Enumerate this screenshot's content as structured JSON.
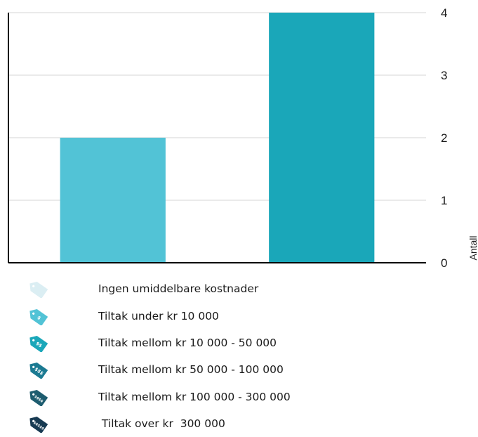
{
  "chart_data": {
    "type": "bar",
    "categories": [
      "Tiltak under kr 10 000",
      "Tiltak mellom kr 10 000 - 50 000"
    ],
    "values": [
      2,
      4
    ],
    "ylabel": "Antall",
    "ylim": [
      0,
      4
    ],
    "yticks": [
      "0",
      "1",
      "2",
      "3",
      "4"
    ],
    "y_axis_side": "right",
    "grid": true,
    "bar_colors": [
      "#52c3d6",
      "#1aa7b9"
    ]
  },
  "legend": {
    "items": [
      {
        "label": "Ingen umiddelbare kostnader",
        "color": "#dbeef3",
        "icon": "price-tag-icon",
        "glyph": ""
      },
      {
        "label": "Tiltak under kr 10 000",
        "color": "#52c3d6",
        "icon": "price-tag-icon",
        "glyph": "$"
      },
      {
        "label": "Tiltak mellom kr 10 000 - 50 000",
        "color": "#1aa7b9",
        "icon": "price-tag-icon",
        "glyph": "$$"
      },
      {
        "label": "Tiltak mellom kr 50 000 - 100 000",
        "color": "#1b7a92",
        "icon": "price-tag-icon",
        "glyph": "$$$"
      },
      {
        "label": "Tiltak mellom kr 100 000 - 300 000",
        "color": "#1d5c6f",
        "icon": "price-tag-icon",
        "glyph": "$$$$"
      },
      {
        "label": " Tiltak over kr  300 000",
        "color": "#173a52",
        "icon": "price-tag-icon",
        "glyph": "$$$$$"
      }
    ]
  }
}
